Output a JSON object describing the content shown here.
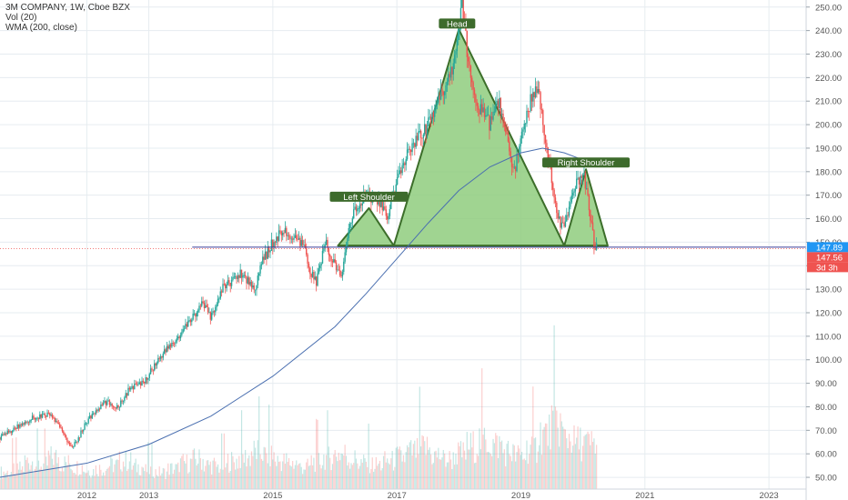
{
  "legend": {
    "title": "3M COMPANY, 1W, Cboe BZX",
    "vol": "Vol (20)",
    "wma": "WMA (200, close)"
  },
  "colors": {
    "up": "#26a69a",
    "down": "#ef5350",
    "wma": "#4a6fb0",
    "pattern_fill": "#8fcd7e",
    "pattern_stroke": "#3c6e2a",
    "label_bg": "#3d6b2c",
    "neckline": "#3b3e9a",
    "price_badge": "#2196f3",
    "prev_badge": "#ef5350",
    "grid": "#e6ecf0"
  },
  "chart_data": {
    "type": "candlestick",
    "title": "3M COMPANY, 1W, Cboe BZX",
    "x_ticks": [
      "2012",
      "2013",
      "2015",
      "2017",
      "2019",
      "2021",
      "2023"
    ],
    "x_tick_years": [
      2012,
      2013,
      2015,
      2017,
      2019,
      2021,
      2023
    ],
    "xlim": [
      2010.6,
      2023.6
    ],
    "y_ticks": [
      "250.00",
      "240.00",
      "230.00",
      "220.00",
      "210.00",
      "200.00",
      "190.00",
      "180.00",
      "170.00",
      "160.00",
      "150.00",
      "140.00",
      "130.00",
      "120.00",
      "110.00",
      "100.00",
      "90.00",
      "80.00",
      "70.00",
      "60.00",
      "50.00"
    ],
    "ylim": [
      45,
      253
    ],
    "price_path": [
      [
        2010.6,
        67
      ],
      [
        2011.1,
        75
      ],
      [
        2011.4,
        77
      ],
      [
        2011.65,
        68
      ],
      [
        2011.75,
        62
      ],
      [
        2011.85,
        66
      ],
      [
        2012.0,
        74
      ],
      [
        2012.3,
        82
      ],
      [
        2012.5,
        80
      ],
      [
        2012.7,
        88
      ],
      [
        2012.9,
        90
      ],
      [
        2013.2,
        102
      ],
      [
        2013.5,
        110
      ],
      [
        2013.7,
        118
      ],
      [
        2013.85,
        124
      ],
      [
        2014.0,
        118
      ],
      [
        2014.2,
        131
      ],
      [
        2014.5,
        137
      ],
      [
        2014.7,
        130
      ],
      [
        2014.8,
        140
      ],
      [
        2015.0,
        150
      ],
      [
        2015.15,
        155
      ],
      [
        2015.3,
        152
      ],
      [
        2015.5,
        148
      ],
      [
        2015.6,
        138
      ],
      [
        2015.7,
        133
      ],
      [
        2015.85,
        150
      ],
      [
        2016.0,
        140
      ],
      [
        2016.1,
        134
      ],
      [
        2016.25,
        160
      ],
      [
        2016.5,
        170
      ],
      [
        2016.7,
        168
      ],
      [
        2016.85,
        160
      ],
      [
        2017.0,
        175
      ],
      [
        2017.2,
        190
      ],
      [
        2017.5,
        200
      ],
      [
        2017.7,
        212
      ],
      [
        2017.9,
        225
      ],
      [
        2018.05,
        250
      ],
      [
        2018.15,
        228
      ],
      [
        2018.3,
        208
      ],
      [
        2018.5,
        200
      ],
      [
        2018.65,
        210
      ],
      [
        2018.8,
        190
      ],
      [
        2018.9,
        180
      ],
      [
        2019.0,
        196
      ],
      [
        2019.2,
        215
      ],
      [
        2019.3,
        212
      ],
      [
        2019.45,
        185
      ],
      [
        2019.6,
        160
      ],
      [
        2019.7,
        155
      ],
      [
        2019.85,
        172
      ],
      [
        2020.0,
        180
      ],
      [
        2020.1,
        165
      ],
      [
        2020.2,
        145
      ],
      [
        2020.22,
        148
      ]
    ],
    "wma_path": [
      [
        2010.6,
        50
      ],
      [
        2012.0,
        56
      ],
      [
        2013.0,
        64
      ],
      [
        2014.0,
        76
      ],
      [
        2015.0,
        93
      ],
      [
        2016.0,
        114
      ],
      [
        2016.5,
        128
      ],
      [
        2017.0,
        143
      ],
      [
        2017.5,
        158
      ],
      [
        2018.0,
        172
      ],
      [
        2018.5,
        182
      ],
      [
        2019.0,
        188
      ],
      [
        2019.35,
        190
      ],
      [
        2019.7,
        188
      ],
      [
        2020.0,
        185
      ],
      [
        2020.2,
        183
      ]
    ],
    "volume": {
      "label": "Vol (20)",
      "values": [
        18,
        22,
        30,
        26,
        34,
        28,
        24,
        20,
        22,
        26,
        30,
        24,
        20,
        18,
        22,
        28,
        32,
        26,
        24,
        30,
        34,
        40,
        36,
        30,
        28,
        24,
        30,
        34,
        38,
        32,
        28,
        26,
        30,
        34,
        40,
        44,
        36,
        32,
        38,
        46,
        52,
        48,
        40,
        36,
        44,
        60,
        70,
        56,
        50,
        48
      ],
      "scale_max": 100
    },
    "pattern": {
      "type": "head-and-shoulders",
      "neckline": 148.5,
      "labels": [
        "Left Shoulder",
        "Head",
        "Right Shoulder"
      ],
      "left_shoulder": {
        "start": [
          2016.05,
          148.5
        ],
        "peak": [
          2016.55,
          164.5
        ],
        "end": [
          2016.95,
          148.5
        ]
      },
      "head": {
        "start": [
          2016.95,
          148.5
        ],
        "peak": [
          2018.0,
          240.5
        ],
        "end": [
          2019.7,
          148.5
        ]
      },
      "right_shoulder": {
        "start": [
          2019.7,
          148.5
        ],
        "peak": [
          2020.05,
          181
        ],
        "end": [
          2020.4,
          148.5
        ]
      }
    },
    "neckline_price": 147.89,
    "neckline_start_x": 2013.7,
    "price_labels": {
      "current": "147.89",
      "previous": "147.56",
      "countdown": "3d 3h"
    },
    "grid": true
  }
}
